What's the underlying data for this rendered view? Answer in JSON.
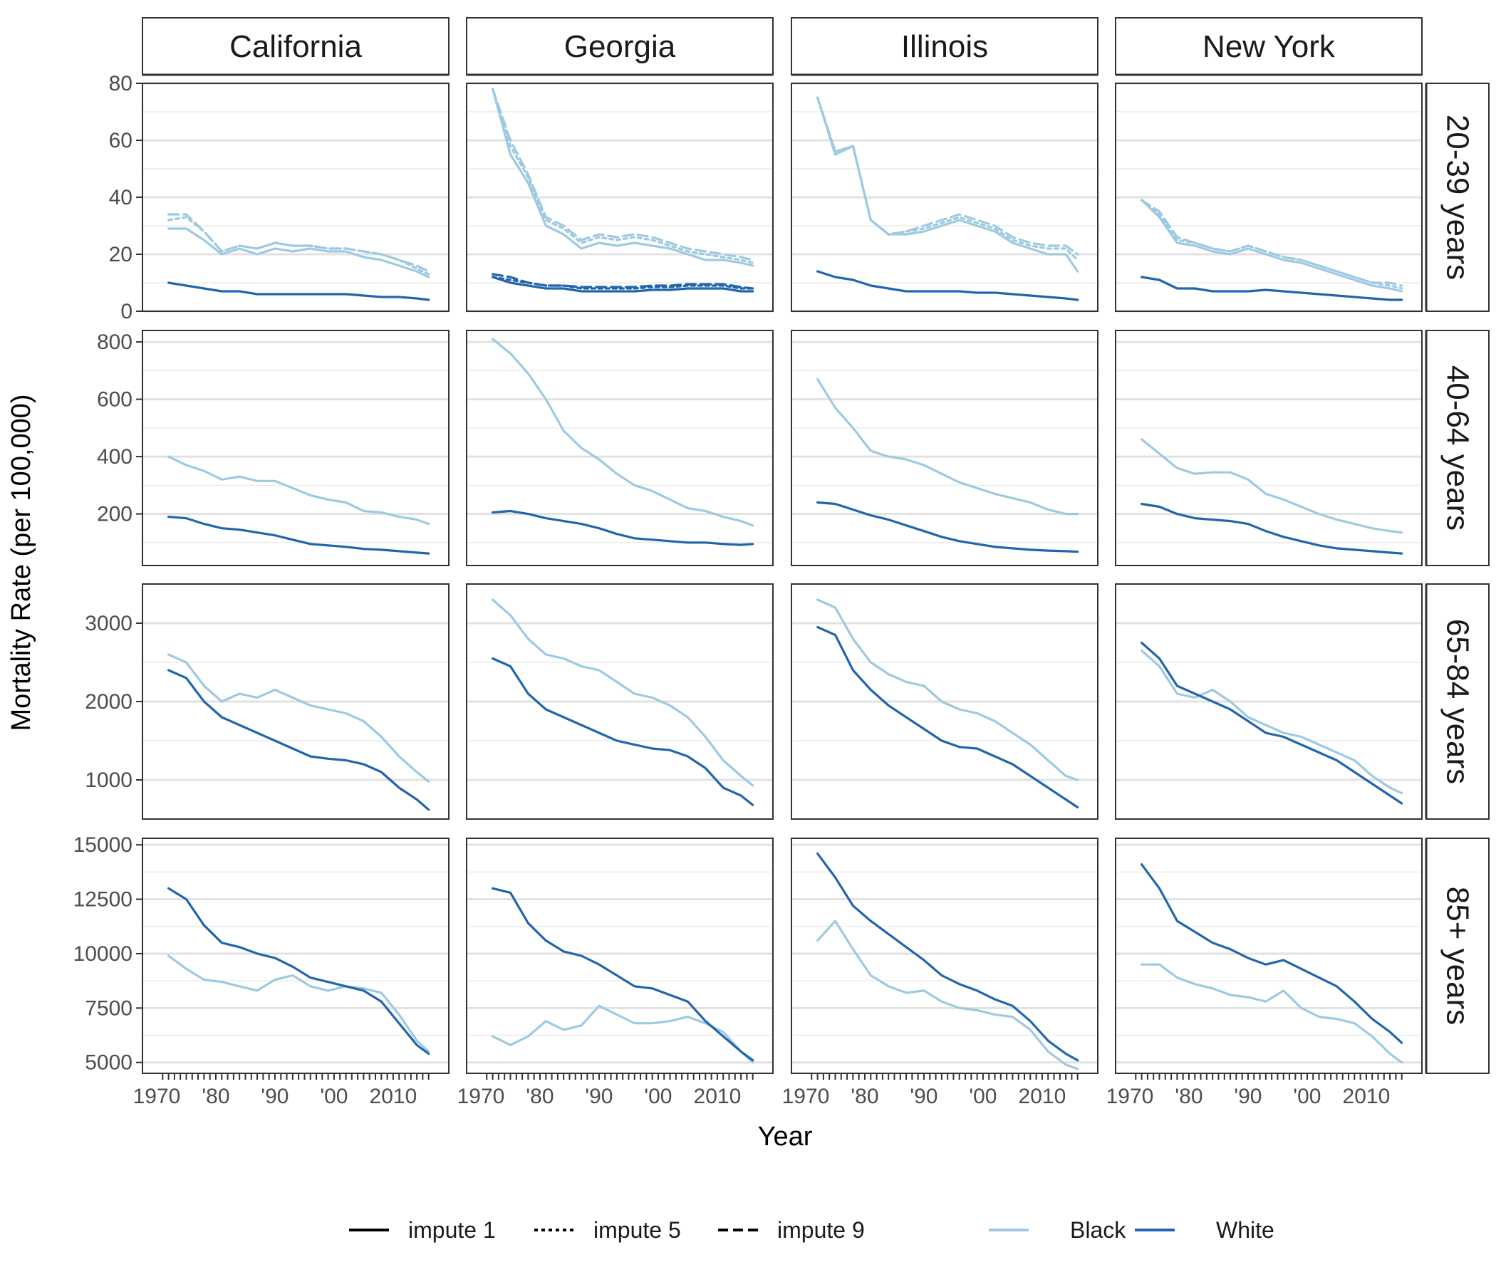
{
  "chart_data": {
    "type": "line",
    "title": "",
    "xlabel": "Year",
    "ylabel": "Mortality Rate (per 100,000)",
    "x_range": [
      1970,
      2017
    ],
    "x_ticks": [
      1970,
      1980,
      1990,
      2000,
      2010
    ],
    "x_tick_labels": [
      "1970",
      "'80",
      "'90",
      "'00",
      "2010"
    ],
    "grid": true,
    "legend_position": "bottom",
    "legend": {
      "linetypes": [
        "impute 1",
        "impute 5",
        "impute 9"
      ],
      "races": [
        "Black",
        "White"
      ]
    },
    "colors": {
      "Black": "#9ecae1",
      "White": "#2166ac"
    },
    "columns": [
      "California",
      "Georgia",
      "Illinois",
      "New York"
    ],
    "rows": [
      {
        "label": "20-39 years",
        "ylim": [
          0,
          80
        ],
        "yticks": [
          0,
          20,
          40,
          60,
          80
        ]
      },
      {
        "label": "40-64 years",
        "ylim": [
          20,
          840
        ],
        "yticks": [
          200,
          400,
          600,
          800
        ]
      },
      {
        "label": "65-84 years",
        "ylim": [
          500,
          3500
        ],
        "yticks": [
          1000,
          2000,
          3000
        ]
      },
      {
        "label": "85+ years",
        "ylim": [
          4500,
          15300
        ],
        "yticks": [
          5000,
          7500,
          10000,
          12500,
          15000
        ]
      }
    ],
    "years": [
      1972,
      1975,
      1978,
      1981,
      1984,
      1987,
      1990,
      1993,
      1996,
      1999,
      2002,
      2005,
      2008,
      2011,
      2014,
      2016
    ],
    "series": [
      {
        "column": "California",
        "row": "20-39 years",
        "name": "Black",
        "linetype": "impute 1",
        "values": [
          29,
          29,
          25,
          20,
          22,
          20,
          22,
          21,
          22,
          21,
          21,
          19,
          18,
          16,
          14,
          12
        ]
      },
      {
        "column": "California",
        "row": "20-39 years",
        "name": "Black",
        "linetype": "impute 5",
        "values": [
          32,
          33,
          28,
          21,
          23,
          22,
          24,
          23,
          23,
          22,
          22,
          21,
          20,
          18,
          15,
          13
        ]
      },
      {
        "column": "California",
        "row": "20-39 years",
        "name": "Black",
        "linetype": "impute 9",
        "values": [
          34,
          34,
          28,
          21,
          23,
          22,
          24,
          23,
          23,
          22,
          22,
          21,
          20,
          18,
          16,
          14
        ]
      },
      {
        "column": "California",
        "row": "20-39 years",
        "name": "White",
        "linetype": "impute 1",
        "values": [
          10,
          9,
          8,
          7,
          7,
          6,
          6,
          6,
          6,
          6,
          6,
          5.5,
          5,
          5,
          4.5,
          4
        ]
      },
      {
        "column": "Georgia",
        "row": "20-39 years",
        "name": "Black",
        "linetype": "impute 1",
        "values": [
          78,
          55,
          45,
          30,
          27,
          22,
          24,
          23,
          24,
          23,
          22,
          20,
          18,
          18,
          17,
          16
        ]
      },
      {
        "column": "Georgia",
        "row": "20-39 years",
        "name": "Black",
        "linetype": "impute 5",
        "values": [
          78,
          58,
          47,
          32,
          29,
          24,
          26,
          25,
          26,
          25,
          23,
          21,
          20,
          19,
          18,
          17
        ]
      },
      {
        "column": "Georgia",
        "row": "20-39 years",
        "name": "Black",
        "linetype": "impute 9",
        "values": [
          78,
          60,
          48,
          33,
          30,
          25,
          27,
          26,
          27,
          26,
          24,
          22,
          21,
          20,
          19,
          18
        ]
      },
      {
        "column": "Georgia",
        "row": "20-39 years",
        "name": "White",
        "linetype": "impute 1",
        "values": [
          12,
          10,
          9,
          8,
          8,
          7,
          7,
          7,
          7,
          7.5,
          7.5,
          8,
          8,
          8,
          7,
          7
        ]
      },
      {
        "column": "Georgia",
        "row": "20-39 years",
        "name": "White",
        "linetype": "impute 5",
        "values": [
          12,
          11,
          10,
          9,
          9,
          8,
          8,
          8,
          8,
          8.5,
          8.5,
          9,
          9,
          9,
          8,
          8
        ]
      },
      {
        "column": "Georgia",
        "row": "20-39 years",
        "name": "White",
        "linetype": "impute 9",
        "values": [
          13,
          12,
          10,
          9,
          9,
          8.5,
          8.5,
          8.5,
          8.5,
          9,
          9,
          9.5,
          9.5,
          9.5,
          8.5,
          8
        ]
      },
      {
        "column": "Illinois",
        "row": "20-39 years",
        "name": "Black",
        "linetype": "impute 1",
        "values": [
          75,
          55,
          58,
          32,
          27,
          27,
          28,
          30,
          32,
          30,
          28,
          24,
          22,
          20,
          20,
          14
        ]
      },
      {
        "column": "Illinois",
        "row": "20-39 years",
        "name": "Black",
        "linetype": "impute 5",
        "values": [
          75,
          56,
          58,
          32,
          27,
          28,
          29,
          31,
          33,
          31,
          29,
          25,
          23,
          22,
          22,
          18
        ]
      },
      {
        "column": "Illinois",
        "row": "20-39 years",
        "name": "Black",
        "linetype": "impute 9",
        "values": [
          75,
          56,
          58,
          32,
          27,
          28,
          30,
          32,
          34,
          32,
          30,
          26,
          24,
          23,
          23,
          20
        ]
      },
      {
        "column": "Illinois",
        "row": "20-39 years",
        "name": "White",
        "linetype": "impute 1",
        "values": [
          14,
          12,
          11,
          9,
          8,
          7,
          7,
          7,
          7,
          6.5,
          6.5,
          6,
          5.5,
          5,
          4.5,
          4
        ]
      },
      {
        "column": "New York",
        "row": "20-39 years",
        "name": "Black",
        "linetype": "impute 1",
        "values": [
          39,
          33,
          24,
          23,
          21,
          20,
          22,
          20,
          18,
          17,
          15,
          13,
          11,
          9,
          8,
          7
        ]
      },
      {
        "column": "New York",
        "row": "20-39 years",
        "name": "Black",
        "linetype": "impute 5",
        "values": [
          39,
          34,
          25,
          24,
          22,
          21,
          23,
          21,
          19,
          18,
          16,
          14,
          12,
          10,
          9,
          8
        ]
      },
      {
        "column": "New York",
        "row": "20-39 years",
        "name": "Black",
        "linetype": "impute 9",
        "values": [
          39,
          35,
          26,
          24,
          22,
          21,
          23,
          21,
          19,
          18,
          16,
          14,
          12,
          10,
          10,
          9
        ]
      },
      {
        "column": "New York",
        "row": "20-39 years",
        "name": "White",
        "linetype": "impute 1",
        "values": [
          12,
          11,
          8,
          8,
          7,
          7,
          7,
          7.5,
          7,
          6.5,
          6,
          5.5,
          5,
          4.5,
          4,
          4
        ]
      },
      {
        "column": "California",
        "row": "40-64 years",
        "name": "Black",
        "linetype": "impute 1",
        "values": [
          400,
          370,
          350,
          320,
          330,
          315,
          315,
          290,
          265,
          250,
          240,
          210,
          205,
          190,
          180,
          165
        ]
      },
      {
        "column": "California",
        "row": "40-64 years",
        "name": "White",
        "linetype": "impute 1",
        "values": [
          190,
          185,
          165,
          150,
          145,
          135,
          125,
          110,
          95,
          90,
          85,
          78,
          75,
          70,
          65,
          62
        ]
      },
      {
        "column": "Georgia",
        "row": "40-64 years",
        "name": "Black",
        "linetype": "impute 1",
        "values": [
          810,
          760,
          690,
          600,
          490,
          430,
          390,
          340,
          300,
          280,
          250,
          220,
          210,
          190,
          175,
          160
        ]
      },
      {
        "column": "Georgia",
        "row": "40-64 years",
        "name": "White",
        "linetype": "impute 1",
        "values": [
          205,
          210,
          200,
          185,
          175,
          165,
          150,
          130,
          115,
          110,
          105,
          100,
          100,
          95,
          92,
          95
        ]
      },
      {
        "column": "Illinois",
        "row": "40-64 years",
        "name": "Black",
        "linetype": "impute 1",
        "values": [
          670,
          570,
          500,
          420,
          400,
          390,
          370,
          340,
          310,
          290,
          270,
          255,
          240,
          215,
          200,
          200
        ]
      },
      {
        "column": "Illinois",
        "row": "40-64 years",
        "name": "White",
        "linetype": "impute 1",
        "values": [
          240,
          235,
          215,
          195,
          180,
          160,
          140,
          120,
          105,
          95,
          85,
          80,
          75,
          72,
          70,
          68
        ]
      },
      {
        "column": "New York",
        "row": "40-64 years",
        "name": "Black",
        "linetype": "impute 1",
        "values": [
          460,
          410,
          360,
          340,
          345,
          345,
          320,
          270,
          250,
          225,
          200,
          180,
          165,
          150,
          140,
          135
        ]
      },
      {
        "column": "New York",
        "row": "40-64 years",
        "name": "White",
        "linetype": "impute 1",
        "values": [
          235,
          225,
          200,
          185,
          180,
          175,
          165,
          140,
          120,
          105,
          90,
          80,
          75,
          70,
          65,
          62
        ]
      },
      {
        "column": "California",
        "row": "65-84 years",
        "name": "Black",
        "linetype": "impute 1",
        "values": [
          2600,
          2500,
          2200,
          2000,
          2100,
          2050,
          2150,
          2050,
          1950,
          1900,
          1850,
          1750,
          1550,
          1300,
          1100,
          980
        ]
      },
      {
        "column": "California",
        "row": "65-84 years",
        "name": "White",
        "linetype": "impute 1",
        "values": [
          2400,
          2300,
          2000,
          1800,
          1700,
          1600,
          1500,
          1400,
          1300,
          1270,
          1250,
          1200,
          1100,
          900,
          750,
          620
        ]
      },
      {
        "column": "Georgia",
        "row": "65-84 years",
        "name": "Black",
        "linetype": "impute 1",
        "values": [
          3300,
          3100,
          2800,
          2600,
          2550,
          2450,
          2400,
          2250,
          2100,
          2050,
          1950,
          1800,
          1550,
          1250,
          1050,
          930
        ]
      },
      {
        "column": "Georgia",
        "row": "65-84 years",
        "name": "White",
        "linetype": "impute 1",
        "values": [
          2550,
          2450,
          2100,
          1900,
          1800,
          1700,
          1600,
          1500,
          1450,
          1400,
          1380,
          1300,
          1150,
          900,
          800,
          680
        ]
      },
      {
        "column": "Illinois",
        "row": "65-84 years",
        "name": "Black",
        "linetype": "impute 1",
        "values": [
          3300,
          3200,
          2800,
          2500,
          2350,
          2250,
          2200,
          2000,
          1900,
          1850,
          1750,
          1600,
          1450,
          1250,
          1050,
          1000
        ]
      },
      {
        "column": "Illinois",
        "row": "65-84 years",
        "name": "White",
        "linetype": "impute 1",
        "values": [
          2950,
          2850,
          2400,
          2150,
          1950,
          1800,
          1650,
          1500,
          1420,
          1400,
          1300,
          1200,
          1050,
          900,
          750,
          650
        ]
      },
      {
        "column": "New York",
        "row": "65-84 years",
        "name": "Black",
        "linetype": "impute 1",
        "values": [
          2650,
          2450,
          2100,
          2050,
          2150,
          2000,
          1800,
          1700,
          1600,
          1550,
          1450,
          1350,
          1250,
          1050,
          900,
          830
        ]
      },
      {
        "column": "New York",
        "row": "65-84 years",
        "name": "White",
        "linetype": "impute 1",
        "values": [
          2750,
          2550,
          2200,
          2100,
          2000,
          1900,
          1750,
          1600,
          1550,
          1450,
          1350,
          1250,
          1100,
          950,
          800,
          700
        ]
      },
      {
        "column": "California",
        "row": "85+ years",
        "name": "Black",
        "linetype": "impute 1",
        "values": [
          9900,
          9300,
          8800,
          8700,
          8500,
          8300,
          8800,
          9000,
          8500,
          8300,
          8500,
          8400,
          8200,
          7200,
          6000,
          5500
        ]
      },
      {
        "column": "California",
        "row": "85+ years",
        "name": "White",
        "linetype": "impute 1",
        "values": [
          13000,
          12500,
          11300,
          10500,
          10300,
          10000,
          9800,
          9400,
          8900,
          8700,
          8500,
          8300,
          7800,
          6800,
          5800,
          5400
        ]
      },
      {
        "column": "Georgia",
        "row": "85+ years",
        "name": "Black",
        "linetype": "impute 1",
        "values": [
          6200,
          5800,
          6200,
          6900,
          6500,
          6700,
          7600,
          7200,
          6800,
          6800,
          6900,
          7100,
          6800,
          6400,
          5500,
          5000
        ]
      },
      {
        "column": "Georgia",
        "row": "85+ years",
        "name": "White",
        "linetype": "impute 1",
        "values": [
          13000,
          12800,
          11400,
          10600,
          10100,
          9900,
          9500,
          9000,
          8500,
          8400,
          8100,
          7800,
          6900,
          6200,
          5500,
          5100
        ]
      },
      {
        "column": "Illinois",
        "row": "85+ years",
        "name": "Black",
        "linetype": "impute 1",
        "values": [
          10600,
          11500,
          10200,
          9000,
          8500,
          8200,
          8300,
          7800,
          7500,
          7400,
          7200,
          7100,
          6500,
          5500,
          4900,
          4700
        ]
      },
      {
        "column": "Illinois",
        "row": "85+ years",
        "name": "White",
        "linetype": "impute 1",
        "values": [
          14600,
          13500,
          12200,
          11500,
          10900,
          10300,
          9700,
          9000,
          8600,
          8300,
          7900,
          7600,
          6900,
          6000,
          5400,
          5100
        ]
      },
      {
        "column": "New York",
        "row": "85+ years",
        "name": "Black",
        "linetype": "impute 1",
        "values": [
          9500,
          9500,
          8900,
          8600,
          8400,
          8100,
          8000,
          7800,
          8300,
          7500,
          7100,
          7000,
          6800,
          6200,
          5400,
          5000
        ]
      },
      {
        "column": "New York",
        "row": "85+ years",
        "name": "White",
        "linetype": "impute 1",
        "values": [
          14100,
          13000,
          11500,
          11000,
          10500,
          10200,
          9800,
          9500,
          9700,
          9300,
          8900,
          8500,
          7800,
          7000,
          6400,
          5900
        ]
      }
    ]
  }
}
